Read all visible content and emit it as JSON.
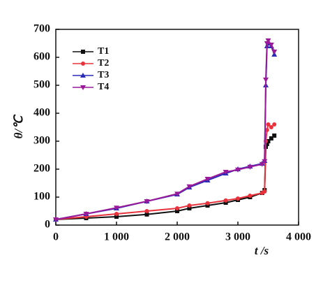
{
  "chart_data": {
    "type": "line",
    "x_label": "t /s",
    "y_label": "θ/℃",
    "x": [
      0,
      500,
      1000,
      1500,
      2000,
      2200,
      2500,
      2800,
      3000,
      3200,
      3400,
      3440,
      3460,
      3480,
      3500,
      3550,
      3600
    ],
    "series": [
      {
        "name": "T1",
        "color": "#111111",
        "marker": "square",
        "values": [
          20,
          25,
          30,
          38,
          50,
          60,
          70,
          80,
          90,
          100,
          115,
          125,
          280,
          290,
          300,
          310,
          320
        ]
      },
      {
        "name": "T2",
        "color": "#e8323c",
        "marker": "circle",
        "values": [
          20,
          30,
          40,
          50,
          60,
          70,
          78,
          88,
          95,
          105,
          115,
          120,
          300,
          340,
          360,
          350,
          360
        ]
      },
      {
        "name": "T3",
        "color": "#2a2ab8",
        "marker": "triangle-up",
        "values": [
          20,
          40,
          60,
          85,
          110,
          135,
          160,
          185,
          200,
          210,
          220,
          230,
          500,
          640,
          650,
          640,
          610
        ]
      },
      {
        "name": "T4",
        "color": "#9a1a9a",
        "marker": "triangle-down",
        "values": [
          20,
          40,
          62,
          85,
          112,
          138,
          165,
          190,
          198,
          208,
          218,
          228,
          520,
          650,
          660,
          645,
          620
        ]
      }
    ],
    "xlim": [
      0,
      4000
    ],
    "xticks": [
      0,
      {
        "value": 1000,
        "label": "1 000"
      },
      {
        "value": 2000,
        "label": "2 000"
      },
      {
        "value": 3000,
        "label": "3 000"
      },
      {
        "value": 4000,
        "label": "4 000"
      }
    ],
    "ylim": [
      0,
      700
    ],
    "yticks": [
      0,
      100,
      200,
      300,
      400,
      500,
      600,
      700
    ],
    "legend": "upper-left"
  }
}
